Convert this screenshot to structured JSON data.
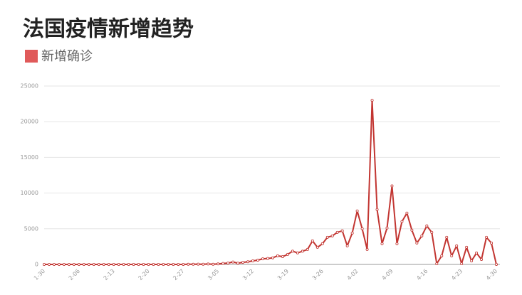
{
  "chart_data": {
    "type": "line",
    "title": "法国疫情新增趋势",
    "categories": [
      "1-30",
      null,
      null,
      null,
      null,
      null,
      null,
      "2-06",
      null,
      null,
      null,
      null,
      null,
      null,
      "2-13",
      null,
      null,
      null,
      null,
      null,
      null,
      "2-20",
      null,
      null,
      null,
      null,
      null,
      null,
      "2-27",
      null,
      null,
      null,
      null,
      null,
      null,
      "3-05",
      null,
      null,
      null,
      null,
      null,
      null,
      "3-12",
      null,
      null,
      null,
      null,
      null,
      null,
      "3-19",
      null,
      null,
      null,
      null,
      null,
      null,
      "3-26",
      null,
      null,
      null,
      null,
      null,
      null,
      "4-02",
      null,
      null,
      null,
      null,
      null,
      null,
      "4-09",
      null,
      null,
      null,
      null,
      null,
      null,
      "4-16",
      null,
      null,
      null,
      null,
      null,
      null,
      "4-23",
      null,
      null,
      null,
      null,
      null,
      null,
      "4-30"
    ],
    "series": [
      {
        "name": "新增确诊",
        "color": "#c23531",
        "values": [
          0,
          0,
          0,
          0,
          0,
          0,
          0,
          0,
          0,
          0,
          0,
          0,
          0,
          0,
          0,
          0,
          0,
          0,
          0,
          0,
          0,
          0,
          0,
          0,
          0,
          0,
          0,
          2,
          4,
          20,
          19,
          43,
          30,
          61,
          21,
          73,
          138,
          190,
          336,
          177,
          286,
          372,
          497,
          595,
          785,
          838,
          924,
          1210,
          1097,
          1404,
          1861,
          1617,
          1850,
          2100,
          3300,
          2400,
          2900,
          3800,
          4000,
          4500,
          4700,
          2600,
          4400,
          7500,
          5000,
          2100,
          23000,
          7700,
          2900,
          5100,
          11000,
          2900,
          6000,
          7200,
          4800,
          3000,
          4000,
          5400,
          4500,
          100,
          1200,
          3800,
          1200,
          2600,
          100,
          2400,
          500,
          1600,
          700,
          3800,
          3000,
          0
        ]
      }
    ],
    "ylim": [
      0,
      25000
    ],
    "yticks": [
      0,
      5000,
      10000,
      15000,
      20000,
      25000
    ],
    "grid": true
  }
}
